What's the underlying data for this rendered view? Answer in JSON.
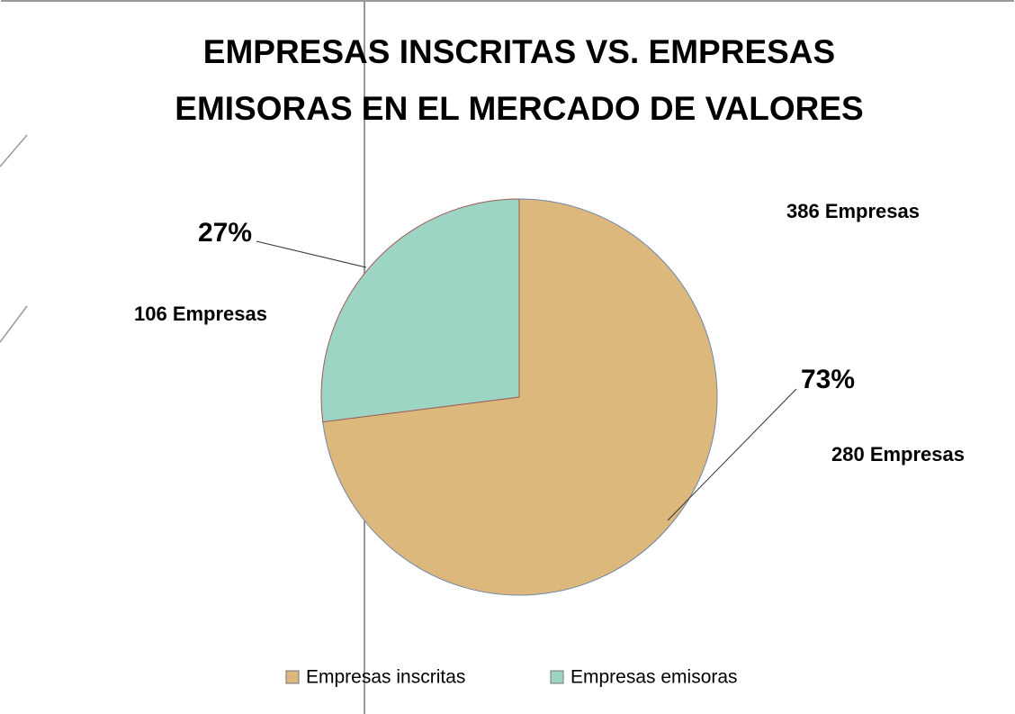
{
  "chart_data": {
    "type": "pie",
    "title": [
      "EMPRESAS INSCRITAS VS. EMPRESAS",
      "EMISORAS EN EL MERCADO DE VALORES"
    ],
    "categories": [
      "Empresas inscritas",
      "Empresas emisoras"
    ],
    "values": [
      73,
      27
    ],
    "value_labels": [
      "73%",
      "27%"
    ],
    "colors": [
      "#dcb87c",
      "#9dd5c5"
    ],
    "annotations": [
      "386 Empresas",
      "106 Empresas",
      "280 Empresas"
    ],
    "legend": "bottom"
  }
}
